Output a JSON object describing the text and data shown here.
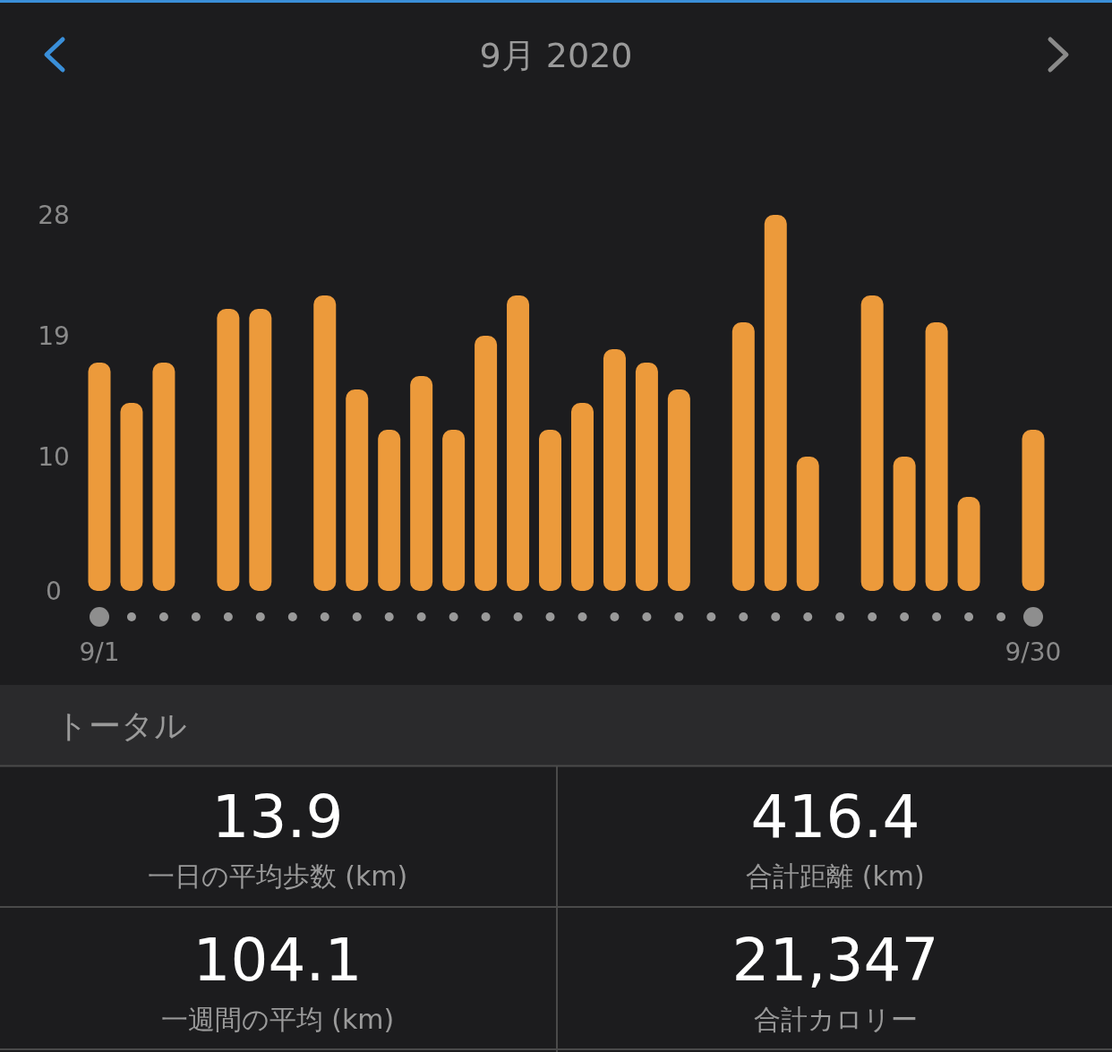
{
  "chart_data": [
    {
      "type": "bar",
      "title": "9月 2020",
      "categories": [
        "9/1",
        null,
        null,
        null,
        null,
        null,
        null,
        null,
        null,
        null,
        null,
        null,
        null,
        null,
        null,
        null,
        null,
        null,
        null,
        null,
        null,
        null,
        null,
        null,
        null,
        null,
        null,
        null,
        null,
        "9/30"
      ],
      "values": [
        17,
        14,
        17,
        0,
        21,
        21,
        0,
        22,
        15,
        12,
        16,
        12,
        19,
        22,
        12,
        14,
        18,
        17,
        15,
        0,
        20,
        28,
        10,
        0,
        22,
        10,
        20,
        7,
        0,
        12
      ],
      "color": "#ec9a3b",
      "ylim": [
        0,
        28
      ],
      "yticks": [
        0,
        10,
        19,
        28
      ],
      "grid": false
    },
    {
      "type": "other",
      "title": "トータル",
      "annotations": [
        "13.9",
        "一日の平均歩数 (km)",
        "416.4",
        "合計距離 (km)",
        "104.1",
        "一週間の平均 (km)",
        "21,347",
        "合計カロリー"
      ]
    }
  ]
}
